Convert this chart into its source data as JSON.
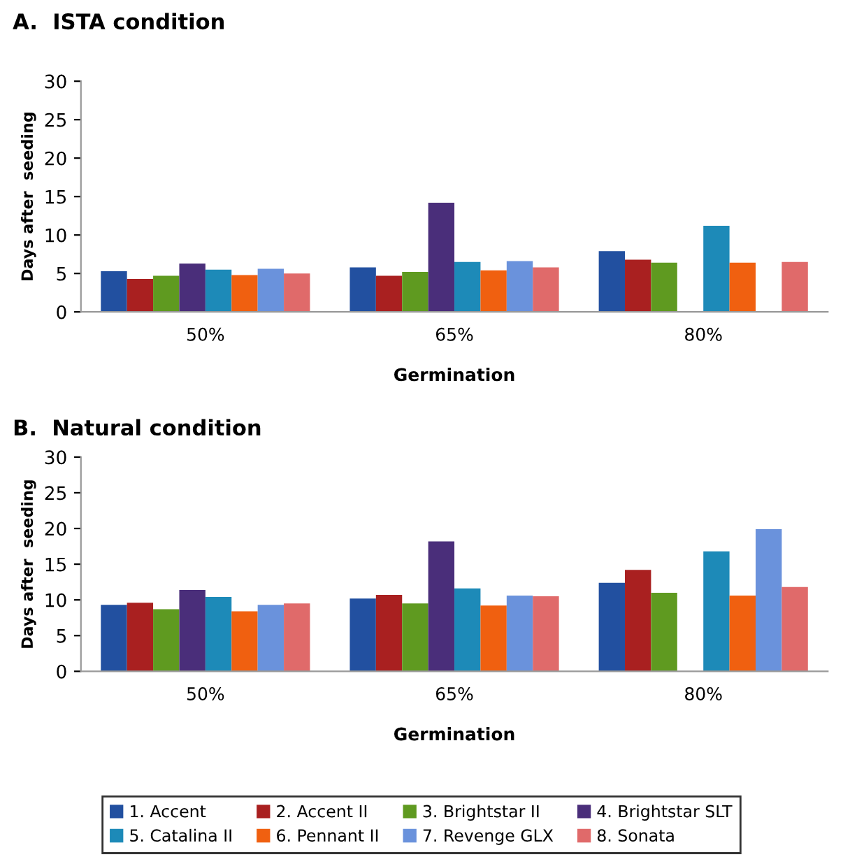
{
  "chart_data": [
    {
      "type": "bar",
      "title": "A.  ISTA condition",
      "xlabel": "Germination",
      "ylabel": "Days after  seeding",
      "categories": [
        "50%",
        "65%",
        "80%"
      ],
      "ylim": [
        0,
        30
      ],
      "yticks": [
        0,
        5,
        10,
        15,
        20,
        25,
        30
      ],
      "grid": false,
      "legend": "bottom",
      "series": [
        {
          "name": "1. Accent",
          "color": "#2250a0",
          "values": [
            5.3,
            5.8,
            7.9
          ]
        },
        {
          "name": "2. Accent II",
          "color": "#a92020",
          "values": [
            4.3,
            4.7,
            6.8
          ]
        },
        {
          "name": "3. Brightstar II",
          "color": "#5f9a20",
          "values": [
            4.7,
            5.2,
            6.4
          ]
        },
        {
          "name": "4. Brightstar SLT",
          "color": "#4a2e7a",
          "values": [
            6.3,
            14.2,
            null
          ]
        },
        {
          "name": "5. Catalina II",
          "color": "#1d8ab8",
          "values": [
            5.5,
            6.5,
            11.2
          ]
        },
        {
          "name": "6. Pennant II",
          "color": "#f06010",
          "values": [
            4.8,
            5.4,
            6.4
          ]
        },
        {
          "name": "7. Revenge GLX",
          "color": "#6a92dc",
          "values": [
            5.6,
            6.6,
            null
          ]
        },
        {
          "name": "8. Sonata",
          "color": "#e06a6a",
          "values": [
            5.0,
            5.8,
            6.5
          ]
        }
      ]
    },
    {
      "type": "bar",
      "title": "B.  Natural condition",
      "xlabel": "Germination",
      "ylabel": "Days after  seeding",
      "categories": [
        "50%",
        "65%",
        "80%"
      ],
      "ylim": [
        0,
        30
      ],
      "yticks": [
        0,
        5,
        10,
        15,
        20,
        25,
        30
      ],
      "grid": false,
      "series": [
        {
          "color": "#2250a0",
          "values": [
            9.3,
            10.2,
            12.4
          ]
        },
        {
          "color": "#a92020",
          "values": [
            9.6,
            10.7,
            14.2
          ]
        },
        {
          "color": "#5f9a20",
          "values": [
            8.7,
            9.5,
            11.0
          ]
        },
        {
          "color": "#4a2e7a",
          "values": [
            11.4,
            18.2,
            null
          ]
        },
        {
          "color": "#1d8ab8",
          "values": [
            10.4,
            11.6,
            16.8
          ]
        },
        {
          "color": "#f06010",
          "values": [
            8.4,
            9.2,
            10.6
          ]
        },
        {
          "color": "#6a92dc",
          "values": [
            9.3,
            10.6,
            19.9
          ]
        },
        {
          "color": "#e06a6a",
          "values": [
            9.5,
            10.5,
            11.8
          ]
        }
      ]
    }
  ]
}
